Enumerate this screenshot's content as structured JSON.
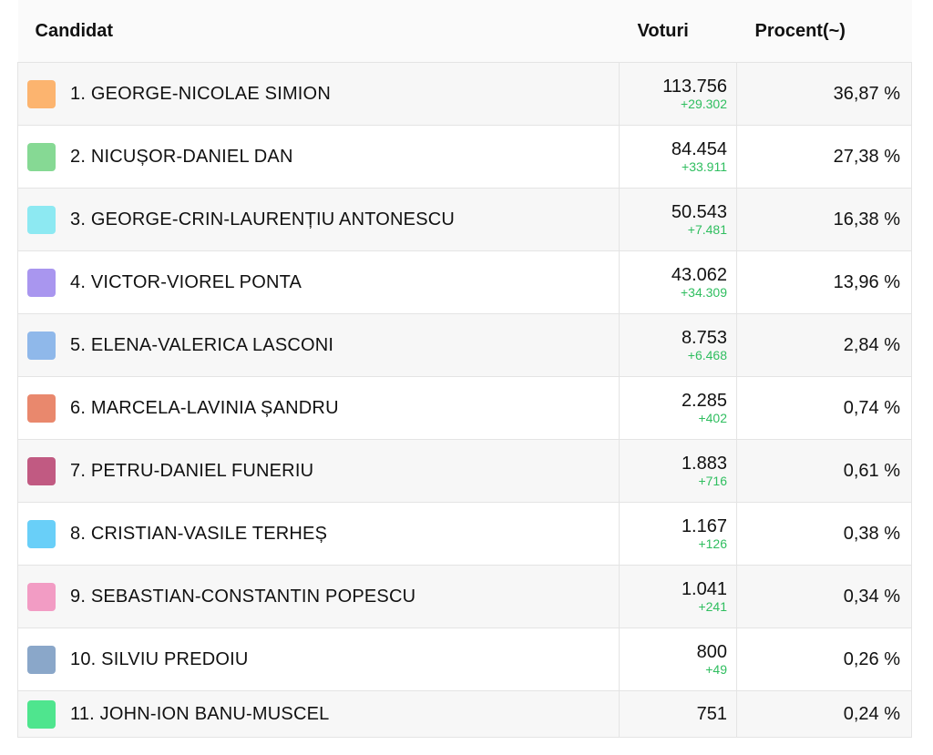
{
  "header": {
    "candidat": "Candidat",
    "voturi": "Voturi",
    "procent": "Procent(~)"
  },
  "rows": [
    {
      "name": "1. GEORGE-NICOLAE SIMION",
      "color": "#fcb46f",
      "votes": "113.756",
      "delta": "+29.302",
      "pct": "36,87 %"
    },
    {
      "name": "2. NICUȘOR-DANIEL DAN",
      "color": "#86d994",
      "votes": "84.454",
      "delta": "+33.911",
      "pct": "27,38 %"
    },
    {
      "name": "3. GEORGE-CRIN-LAURENȚIU ANTONESCU",
      "color": "#8de9f2",
      "votes": "50.543",
      "delta": "+7.481",
      "pct": "16,38 %"
    },
    {
      "name": "4. VICTOR-VIOREL PONTA",
      "color": "#a996ef",
      "votes": "43.062",
      "delta": "+34.309",
      "pct": "13,96 %"
    },
    {
      "name": "5. ELENA-VALERICA LASCONI",
      "color": "#8fb8ea",
      "votes": "8.753",
      "delta": "+6.468",
      "pct": "2,84 %"
    },
    {
      "name": "6. MARCELA-LAVINIA ȘANDRU",
      "color": "#e9886d",
      "votes": "2.285",
      "delta": "+402",
      "pct": "0,74 %"
    },
    {
      "name": "7. PETRU-DANIEL FUNERIU",
      "color": "#c15a82",
      "votes": "1.883",
      "delta": "+716",
      "pct": "0,61 %"
    },
    {
      "name": "8. CRISTIAN-VASILE TERHEȘ",
      "color": "#69cff8",
      "votes": "1.167",
      "delta": "+126",
      "pct": "0,38 %"
    },
    {
      "name": "9. SEBASTIAN-CONSTANTIN POPESCU",
      "color": "#f29cc4",
      "votes": "1.041",
      "delta": "+241",
      "pct": "0,34 %"
    },
    {
      "name": "10. SILVIU PREDOIU",
      "color": "#8aa7c9",
      "votes": "800",
      "delta": "+49",
      "pct": "0,26 %"
    },
    {
      "name": "11. JOHN-ION BANU-MUSCEL",
      "color": "#4fe58e",
      "votes": "751",
      "delta": "",
      "pct": "0,24 %"
    }
  ]
}
